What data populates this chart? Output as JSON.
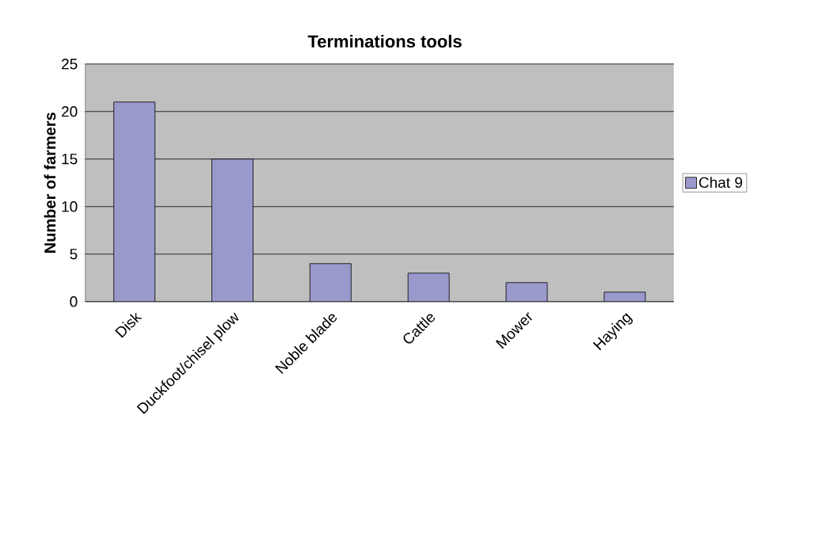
{
  "chart_data": {
    "type": "bar",
    "title": "Terminations tools",
    "ylabel": "Number of farmers",
    "categories": [
      "Disk",
      "Duckfoot/chisel plow",
      "Noble blade",
      "Cattle",
      "Mower",
      "Haying"
    ],
    "series": [
      {
        "name": "Chat 9",
        "color": "#9999cc",
        "values": [
          21,
          15,
          4,
          3,
          2,
          1
        ]
      }
    ],
    "ylim": [
      0,
      25
    ],
    "yticks": [
      0,
      5,
      10,
      15,
      20,
      25
    ],
    "grid": "y",
    "legend": "right"
  }
}
